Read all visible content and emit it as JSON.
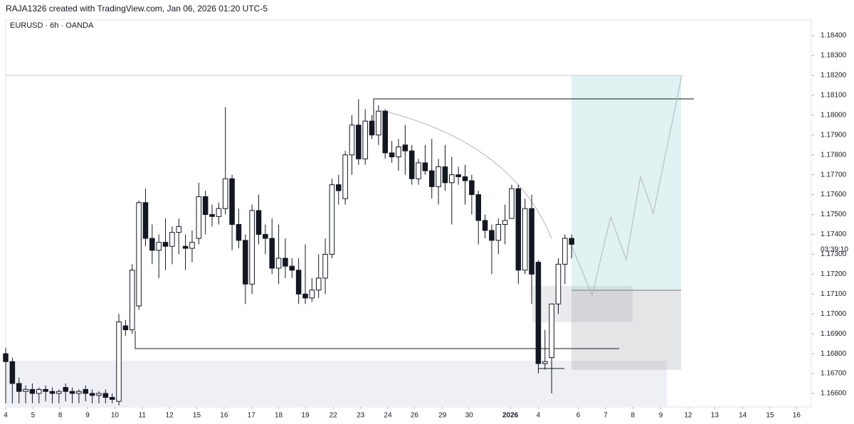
{
  "chart_data": {
    "type": "candlestick",
    "header": "RAJA1326 created with TradingView.com, Jan 06, 2026 01:20 UTC-5",
    "title": "EURUSD · 6h · OANDA",
    "countdown": "03:39:10",
    "up_color": "#ffffff",
    "down_color": "#131722",
    "border_color": "#131722",
    "open": [
      1.168,
      1.1676,
      1.1665,
      1.1661,
      1.1662,
      1.166,
      1.1662,
      1.1661,
      1.166,
      1.1663,
      1.1661,
      1.166,
      1.1662,
      1.166,
      1.1659,
      1.166,
      1.1658,
      1.1656,
      1.1694,
      1.1692,
      1.1704,
      1.1756,
      1.1738,
      1.1732,
      1.1736,
      1.1734,
      1.1741,
      1.1734,
      1.1733,
      1.1738,
      1.1759,
      1.175,
      1.1749,
      1.1753,
      1.1768,
      1.1745,
      1.1737,
      1.1715,
      1.1752,
      1.174,
      1.1738,
      1.1723,
      1.1728,
      1.1724,
      1.1722,
      1.171,
      1.1708,
      1.1712,
      1.1718,
      1.173,
      1.1765,
      1.1758,
      1.178,
      1.1795,
      1.1778,
      1.1797,
      1.179,
      1.1802,
      1.1781,
      1.1779,
      1.1785,
      1.1782,
      1.1768,
      1.1776,
      1.1772,
      1.1764,
      1.1774,
      1.1766,
      1.177,
      1.1769,
      1.1767,
      1.176,
      1.1747,
      1.1742,
      1.1737,
      1.1745,
      1.1748,
      1.1763,
      1.1722,
      1.1753,
      1.1726,
      1.1675,
      1.1678,
      1.1705,
      1.1725,
      1.1738
    ],
    "high": [
      1.1683,
      1.1678,
      1.1668,
      1.1664,
      1.1665,
      1.1663,
      1.1664,
      1.1663,
      1.1662,
      1.1665,
      1.1663,
      1.1662,
      1.1664,
      1.1662,
      1.1661,
      1.1662,
      1.166,
      1.17,
      1.1697,
      1.1725,
      1.1757,
      1.1763,
      1.1745,
      1.174,
      1.1748,
      1.1744,
      1.1748,
      1.174,
      1.1742,
      1.1766,
      1.1762,
      1.1755,
      1.1756,
      1.1804,
      1.177,
      1.1753,
      1.174,
      1.1755,
      1.176,
      1.1745,
      1.1748,
      1.1745,
      1.1738,
      1.1728,
      1.1728,
      1.1735,
      1.1718,
      1.173,
      1.1738,
      1.1768,
      1.177,
      1.1782,
      1.18,
      1.1808,
      1.1803,
      1.18,
      1.1805,
      1.1803,
      1.1787,
      1.1788,
      1.1795,
      1.1785,
      1.1778,
      1.1785,
      1.1788,
      1.1778,
      1.1785,
      1.1779,
      1.1774,
      1.1775,
      1.177,
      1.1762,
      1.175,
      1.1745,
      1.1748,
      1.1755,
      1.1765,
      1.1765,
      1.1758,
      1.176,
      1.1727,
      1.1692,
      1.1705,
      1.1728,
      1.174,
      1.174
    ],
    "low": [
      1.1655,
      1.1655,
      1.1655,
      1.1655,
      1.1655,
      1.1655,
      1.1656,
      1.1655,
      1.1655,
      1.1656,
      1.1655,
      1.1655,
      1.1656,
      1.1655,
      1.1655,
      1.1655,
      1.1655,
      1.1654,
      1.1689,
      1.169,
      1.1702,
      1.1734,
      1.1725,
      1.1718,
      1.1722,
      1.1725,
      1.173,
      1.1722,
      1.1726,
      1.1735,
      1.174,
      1.1744,
      1.1745,
      1.175,
      1.1732,
      1.1733,
      1.1705,
      1.171,
      1.1735,
      1.173,
      1.172,
      1.1715,
      1.1718,
      1.1718,
      1.1705,
      1.1705,
      1.1706,
      1.1708,
      1.171,
      1.1728,
      1.1755,
      1.1755,
      1.177,
      1.1775,
      1.1775,
      1.1788,
      1.1785,
      1.1778,
      1.1776,
      1.1772,
      1.177,
      1.1765,
      1.1765,
      1.177,
      1.1758,
      1.1755,
      1.1762,
      1.1745,
      1.1765,
      1.1755,
      1.175,
      1.1735,
      1.1738,
      1.172,
      1.173,
      1.1735,
      1.1748,
      1.1715,
      1.172,
      1.1705,
      1.167,
      1.1672,
      1.166,
      1.17,
      1.1715,
      1.1728
    ],
    "close": [
      1.1676,
      1.1665,
      1.1661,
      1.1662,
      1.166,
      1.1662,
      1.1661,
      1.166,
      1.1661,
      1.1661,
      1.166,
      1.1661,
      1.166,
      1.1659,
      1.166,
      1.1658,
      1.1657,
      1.1696,
      1.1692,
      1.1722,
      1.1756,
      1.1738,
      1.1732,
      1.1736,
      1.1734,
      1.1741,
      1.1744,
      1.1733,
      1.1736,
      1.1759,
      1.175,
      1.1749,
      1.1753,
      1.1768,
      1.1745,
      1.1737,
      1.1715,
      1.1752,
      1.174,
      1.1738,
      1.1723,
      1.1728,
      1.1724,
      1.1722,
      1.171,
      1.1708,
      1.1712,
      1.1718,
      1.173,
      1.1765,
      1.1762,
      1.178,
      1.1795,
      1.1778,
      1.1797,
      1.179,
      1.1802,
      1.1781,
      1.1779,
      1.1784,
      1.1782,
      1.1768,
      1.1776,
      1.1772,
      1.1764,
      1.1774,
      1.1766,
      1.177,
      1.1769,
      1.1767,
      1.176,
      1.1747,
      1.1742,
      1.1737,
      1.1745,
      1.1747,
      1.1763,
      1.1722,
      1.1753,
      1.172,
      1.1675,
      1.1676,
      1.1705,
      1.1725,
      1.1738,
      1.1735
    ],
    "xlim": [
      0,
      121
    ],
    "xticks": [
      {
        "value": 0,
        "label": "4"
      },
      {
        "value": 4.1,
        "label": "5"
      },
      {
        "value": 8.2,
        "label": "8"
      },
      {
        "value": 12.3,
        "label": "9"
      },
      {
        "value": 16.4,
        "label": "10"
      },
      {
        "value": 20.5,
        "label": "11"
      },
      {
        "value": 24.6,
        "label": "12"
      },
      {
        "value": 28.7,
        "label": "15"
      },
      {
        "value": 32.8,
        "label": "16"
      },
      {
        "value": 36.9,
        "label": "17"
      },
      {
        "value": 41,
        "label": "18"
      },
      {
        "value": 45,
        "label": "19"
      },
      {
        "value": 49.2,
        "label": "22"
      },
      {
        "value": 53.3,
        "label": "23"
      },
      {
        "value": 57.4,
        "label": "24"
      },
      {
        "value": 61.4,
        "label": "26"
      },
      {
        "value": 65.6,
        "label": "29"
      },
      {
        "value": 69.6,
        "label": "30"
      },
      {
        "value": 75.8,
        "label": "2026"
      },
      {
        "value": 80,
        "label": "4"
      },
      {
        "value": 86,
        "label": "6"
      },
      {
        "value": 90.1,
        "label": "7"
      },
      {
        "value": 94.2,
        "label": "8"
      },
      {
        "value": 98.4,
        "label": "9"
      },
      {
        "value": 102.5,
        "label": "12"
      },
      {
        "value": 106.5,
        "label": "13"
      },
      {
        "value": 110.7,
        "label": "14"
      },
      {
        "value": 114.8,
        "label": "15"
      },
      {
        "value": 118.8,
        "label": "16"
      }
    ],
    "ylim": [
      1.16532,
      1.18479
    ],
    "yticks": [
      {
        "value": 1.166,
        "label": "1.16600"
      },
      {
        "value": 1.167,
        "label": "1.16700"
      },
      {
        "value": 1.168,
        "label": "1.16800"
      },
      {
        "value": 1.169,
        "label": "1.16900"
      },
      {
        "value": 1.17,
        "label": "1.17000"
      },
      {
        "value": 1.171,
        "label": "1.17100"
      },
      {
        "value": 1.172,
        "label": "1.17200"
      },
      {
        "value": 1.173,
        "label": "1.17300"
      },
      {
        "value": 1.174,
        "label": "1.17400"
      },
      {
        "value": 1.175,
        "label": "1.17500"
      },
      {
        "value": 1.176,
        "label": "1.17600"
      },
      {
        "value": 1.177,
        "label": "1.17700"
      },
      {
        "value": 1.178,
        "label": "1.17800"
      },
      {
        "value": 1.179,
        "label": "1.17900"
      },
      {
        "value": 1.18,
        "label": "1.18000"
      },
      {
        "value": 1.181,
        "label": "1.18100"
      },
      {
        "value": 1.182,
        "label": "1.18200"
      },
      {
        "value": 1.183,
        "label": "1.18300"
      },
      {
        "value": 1.184,
        "label": "1.18400"
      }
    ]
  }
}
